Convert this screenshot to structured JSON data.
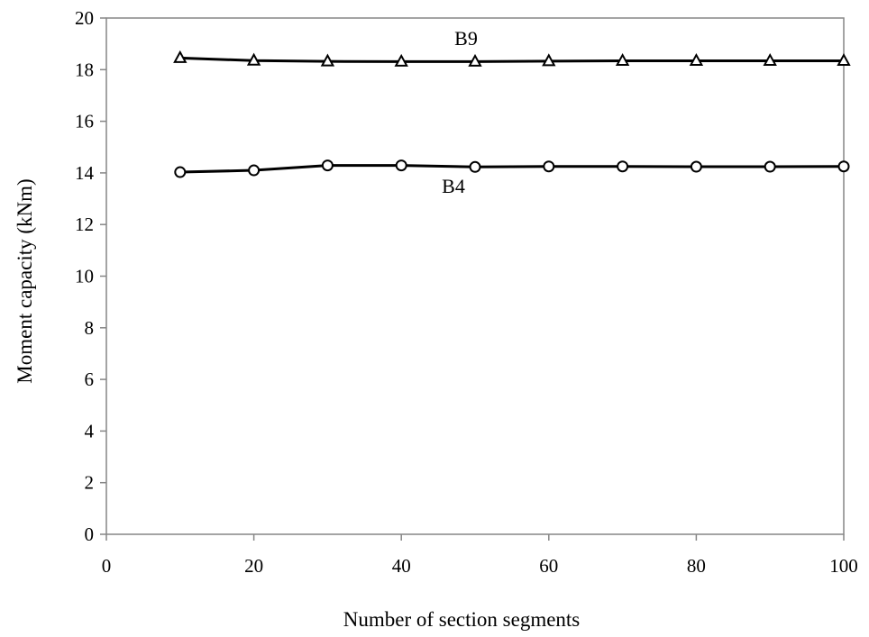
{
  "chart_data": {
    "type": "line",
    "title": "",
    "xlabel": "Number of section segments",
    "ylabel": "Moment capacity (kNm)",
    "xlim": [
      0,
      100
    ],
    "ylim": [
      0,
      20
    ],
    "xticks": [
      "0",
      "20",
      "40",
      "60",
      "80",
      "100"
    ],
    "yticks": [
      "0",
      "2",
      "4",
      "6",
      "8",
      "10",
      "12",
      "14",
      "16",
      "18",
      "20"
    ],
    "grid": false,
    "legend": "none (series labelled inline)",
    "x": [
      10,
      20,
      30,
      40,
      50,
      60,
      70,
      80,
      90,
      100
    ],
    "series": [
      {
        "name": "B9",
        "marker": "triangle",
        "color": "#000000",
        "values": [
          18.45,
          18.35,
          18.32,
          18.31,
          18.31,
          18.33,
          18.34,
          18.34,
          18.34,
          18.34
        ]
      },
      {
        "name": "B4",
        "marker": "circle",
        "color": "#000000",
        "values": [
          14.03,
          14.1,
          14.29,
          14.29,
          14.23,
          14.25,
          14.25,
          14.24,
          14.24,
          14.25
        ]
      }
    ]
  }
}
